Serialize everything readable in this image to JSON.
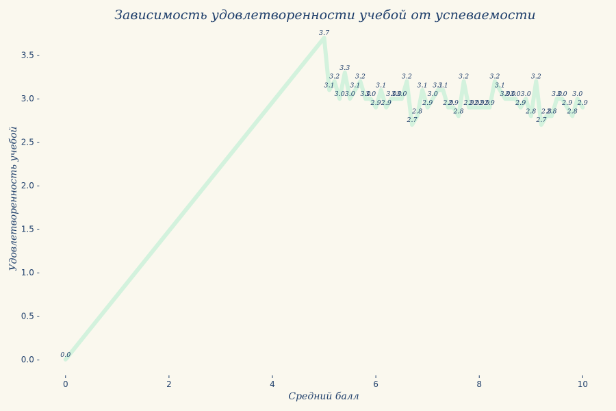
{
  "colors": {
    "background": "#faf8ee",
    "line": "#d3f2dd",
    "text": "#1f3f6b"
  },
  "chart_data": {
    "type": "line",
    "title": "Зависимость удовлетворенности учебой от успеваемости",
    "xlabel": "Средний балл",
    "ylabel": "Удовлетворенность учебой",
    "xlim": [
      -0.5,
      10.3
    ],
    "ylim": [
      -0.12,
      3.82
    ],
    "xticks": [
      0,
      2,
      4,
      6,
      8,
      10
    ],
    "yticks": [
      0.0,
      0.5,
      1.0,
      1.5,
      2.0,
      2.5,
      3.0,
      3.5
    ],
    "xtick_labels": [
      "0",
      "2",
      "4",
      "6",
      "8",
      "10"
    ],
    "ytick_labels": [
      "0.0 -",
      "0.5 -",
      "1.0 -",
      "1.5 -",
      "2.0 -",
      "2.5 -",
      "3.0 -",
      "3.5 -"
    ],
    "grid": false,
    "legend": "none",
    "series": [
      {
        "x": [
          0.0,
          5.0,
          5.1,
          5.2,
          5.3,
          5.4,
          5.5,
          5.6,
          5.7,
          5.8,
          5.9,
          6.0,
          6.1,
          6.2,
          6.3,
          6.4,
          6.5,
          6.6,
          6.7,
          6.8,
          6.9,
          7.0,
          7.1,
          7.2,
          7.3,
          7.4,
          7.5,
          7.6,
          7.7,
          7.8,
          7.9,
          8.0,
          8.1,
          8.2,
          8.3,
          8.4,
          8.5,
          8.6,
          8.7,
          8.8,
          8.9,
          9.0,
          9.1,
          9.2,
          9.3,
          9.4,
          9.5,
          9.6,
          9.7,
          9.8,
          9.9,
          10.0
        ],
        "y": [
          0.0,
          3.7,
          3.1,
          3.2,
          3.0,
          3.3,
          3.0,
          3.1,
          3.2,
          3.0,
          3.0,
          2.9,
          3.1,
          2.9,
          3.0,
          3.0,
          3.0,
          3.2,
          2.7,
          2.8,
          3.1,
          2.9,
          3.0,
          3.1,
          3.1,
          2.9,
          2.9,
          2.8,
          3.2,
          2.9,
          2.9,
          2.9,
          2.9,
          2.9,
          3.2,
          3.1,
          3.0,
          3.0,
          3.0,
          2.9,
          3.0,
          2.8,
          3.2,
          2.7,
          2.8,
          2.8,
          3.0,
          3.0,
          2.9,
          2.8,
          3.0,
          2.9
        ],
        "labels": [
          "0.0",
          "3.7",
          "3.1",
          "3.2",
          "3.0",
          "3.3",
          "3.0",
          "3.1",
          "3.2",
          "3.0",
          "3.0",
          "2.9",
          "3.1",
          "2.9",
          "3.0",
          "3.0",
          "3.0",
          "3.2",
          "2.7",
          "2.8",
          "3.1",
          "2.9",
          "3.0",
          "3.1",
          "3.1",
          "2.9",
          "2.9",
          "2.8",
          "3.2",
          "2.9",
          "2.9",
          "2.9",
          "2.9",
          "2.9",
          "3.2",
          "3.1",
          "3.0",
          "3.0",
          "3.0",
          "2.9",
          "3.0",
          "2.8",
          "3.2",
          "2.7",
          "2.8",
          "2.8",
          "3.0",
          "3.0",
          "2.9",
          "2.8",
          "3.0",
          "2.9"
        ]
      }
    ]
  }
}
